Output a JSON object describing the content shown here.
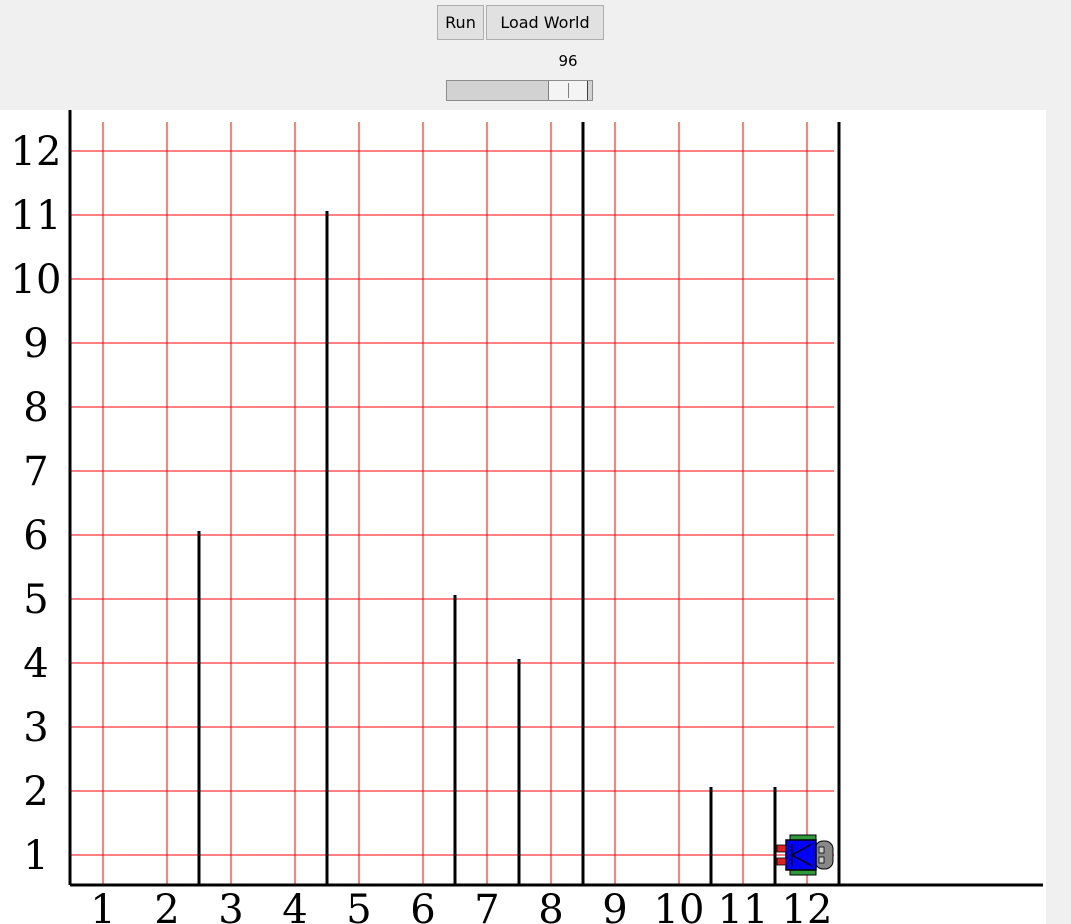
{
  "toolbar": {
    "run_label": "Run",
    "load_world_label": "Load World"
  },
  "speed": {
    "value": "96",
    "level": 96
  },
  "world": {
    "x_labels": [
      "1",
      "2",
      "3",
      "4",
      "5",
      "6",
      "7",
      "8",
      "9",
      "10",
      "11",
      "12"
    ],
    "y_labels": [
      "1",
      "2",
      "3",
      "4",
      "5",
      "6",
      "7",
      "8",
      "9",
      "10",
      "11",
      "12"
    ],
    "avenues": 12,
    "streets": 12,
    "grid_color": "#ff0000",
    "wall_color": "#000000",
    "walls": [
      {
        "between_avenues": [
          2,
          3
        ],
        "height": 5
      },
      {
        "between_avenues": [
          4,
          5
        ],
        "height": 10
      },
      {
        "between_avenues": [
          6,
          7
        ],
        "height": 4
      },
      {
        "between_avenues": [
          7,
          8
        ],
        "height": 3
      },
      {
        "between_avenues": [
          8,
          9
        ],
        "height": 12
      },
      {
        "between_avenues": [
          10,
          11
        ],
        "height": 1
      },
      {
        "between_avenues": [
          11,
          12
        ],
        "height": 1
      },
      {
        "between_avenues": [
          12,
          13
        ],
        "height": 12
      }
    ],
    "robot": {
      "avenue": 12,
      "street": 1,
      "facing": "west",
      "body_color": "#0000ff",
      "icon": "robot-icon"
    }
  }
}
